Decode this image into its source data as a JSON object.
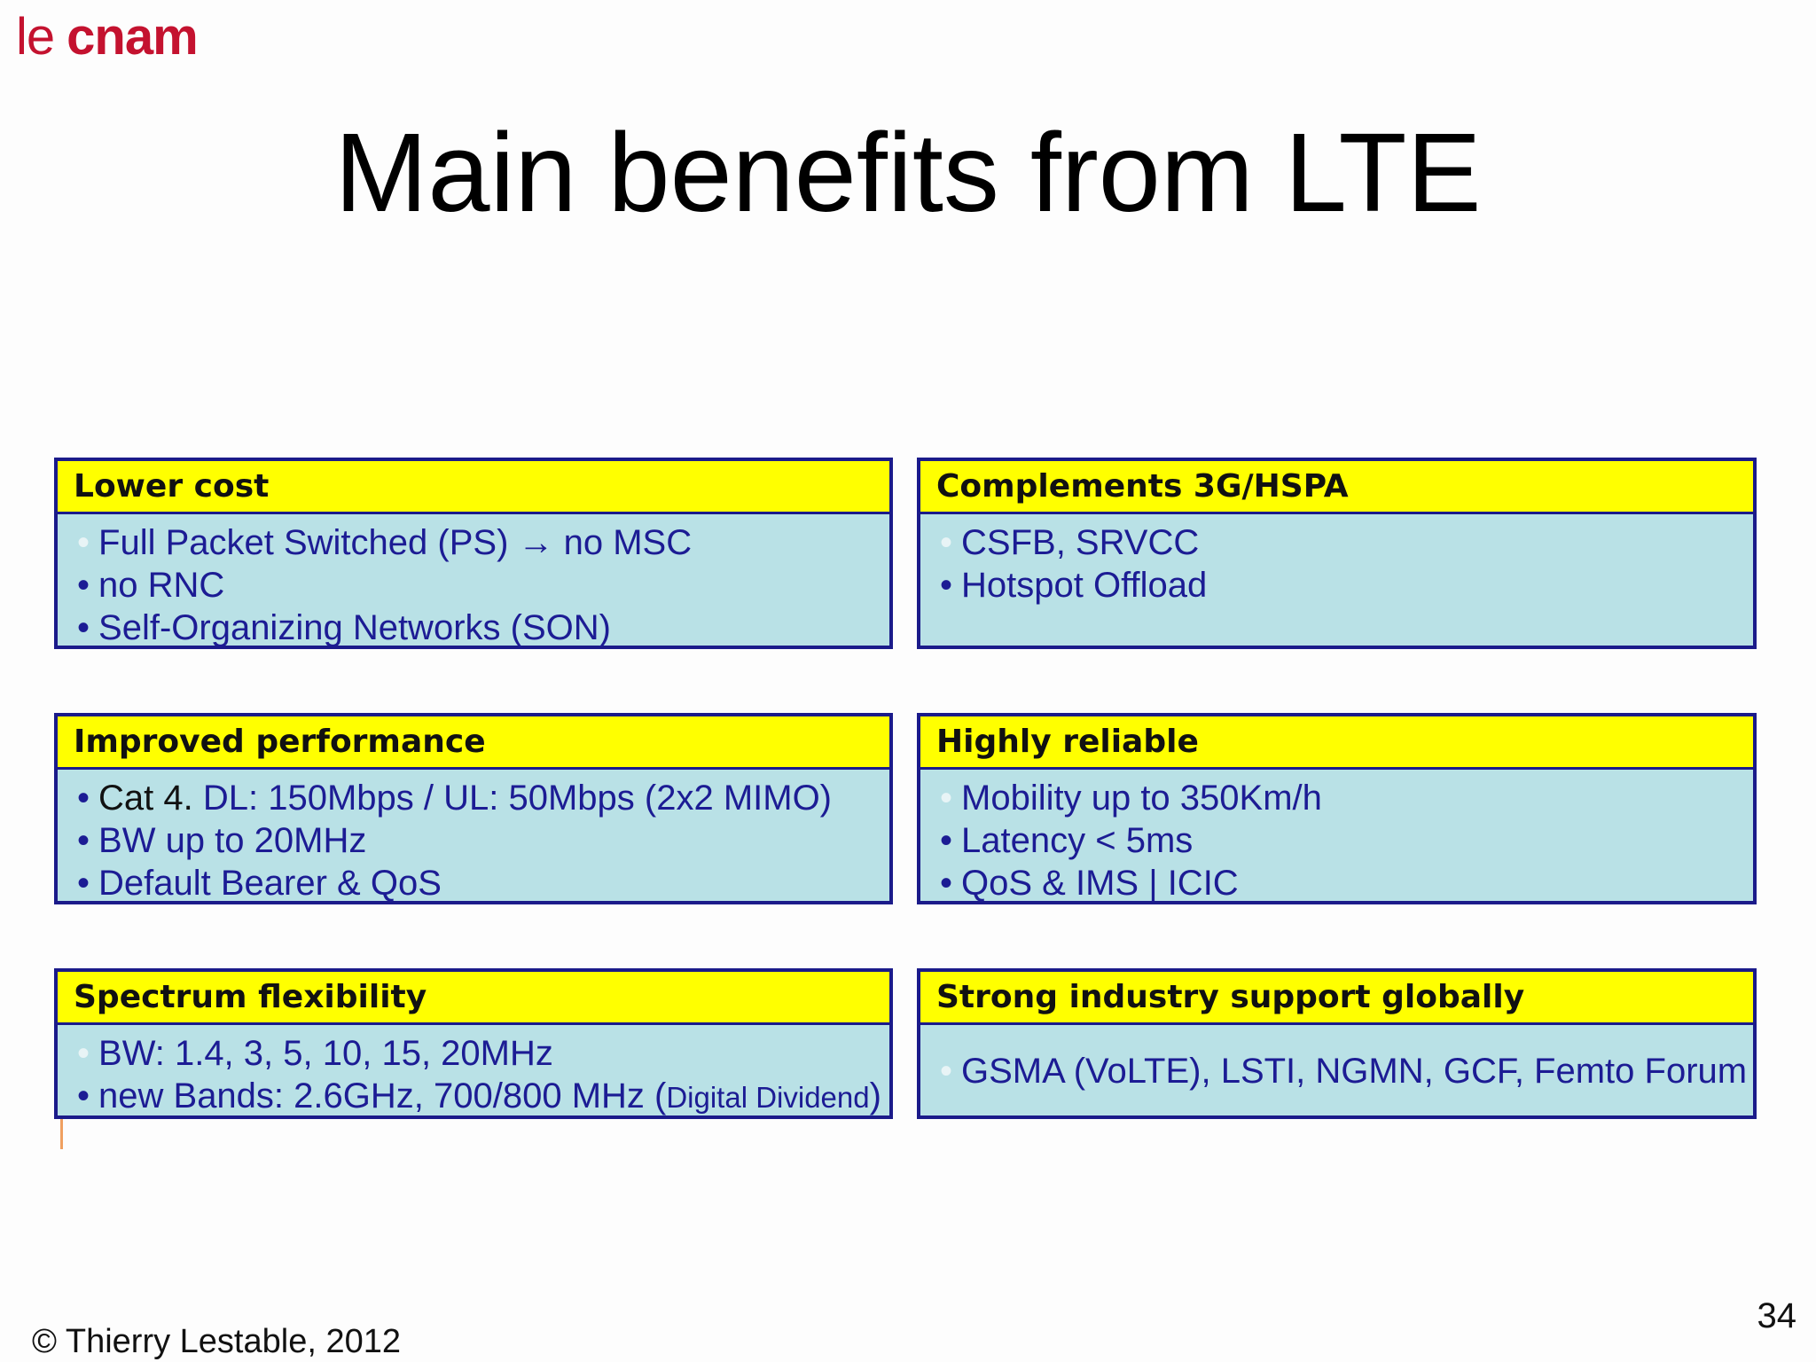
{
  "logo": {
    "le": "le",
    "cnam": "cnam"
  },
  "slide": {
    "title": "Main benefits from LTE"
  },
  "boxes": [
    {
      "header": "Lower cost",
      "items": [
        "Full Packet Switched (PS) → no MSC",
        "no RNC",
        "Self-Organizing Networks (SON)"
      ]
    },
    {
      "header": "Complements 3G/HSPA",
      "items": [
        "CSFB, SRVCC",
        "Hotspot Offload"
      ]
    },
    {
      "header": "Improved performance",
      "items_prefix": "Cat 4.",
      "items": [
        "DL: 150Mbps / UL: 50Mbps (2x2 MIMO)",
        "BW up to 20MHz",
        "Default Bearer & QoS"
      ]
    },
    {
      "header": "Highly reliable",
      "items": [
        "Mobility up to 350Km/h",
        "Latency < 5ms",
        "QoS & IMS | ICIC"
      ]
    },
    {
      "header": "Spectrum flexibility",
      "items": [
        "BW: 1.4, 3, 5, 10, 15, 20MHz",
        "new Bands: 2.6GHz, 700/800 MHz ("
      ],
      "items_suffix": "Digital Dividend",
      "items_close": ")"
    },
    {
      "header": "Strong industry support globally",
      "items": [
        "GSMA (VoLTE), LSTI, NGMN, GCF, Femto Forum"
      ]
    }
  ],
  "footer": {
    "copyright": "© Thierry Lestable, 2012",
    "page_number": "34"
  },
  "colors": {
    "header_bg": "#ffff00",
    "box_bg": "#b9e1e6",
    "border": "#1b1b8a",
    "text": "#1c1c94",
    "logo": "#c4122f"
  }
}
